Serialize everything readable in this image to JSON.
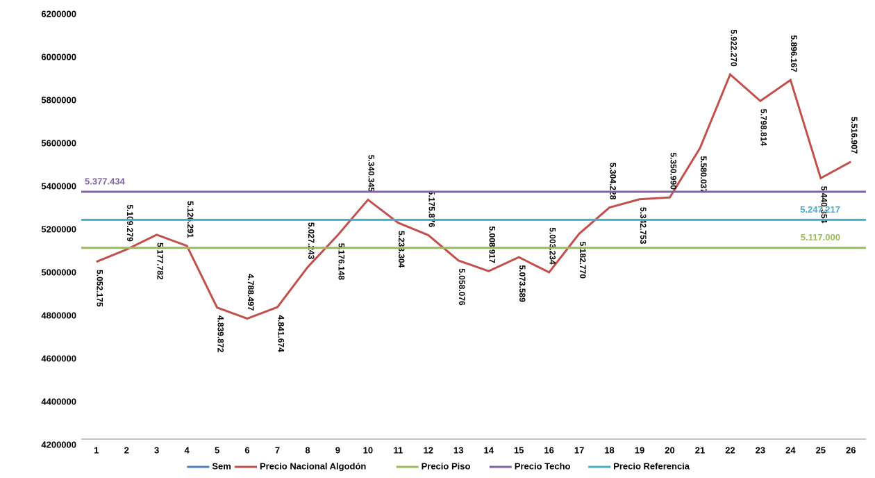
{
  "chart_data": {
    "type": "line",
    "categories": [
      "1",
      "2",
      "3",
      "4",
      "5",
      "6",
      "7",
      "8",
      "9",
      "10",
      "11",
      "12",
      "13",
      "14",
      "15",
      "16",
      "17",
      "18",
      "19",
      "20",
      "21",
      "22",
      "23",
      "24",
      "25",
      "26"
    ],
    "ylim": [
      4200000,
      6200000
    ],
    "yticks": [
      4200000,
      4400000,
      4600000,
      4800000,
      5000000,
      5200000,
      5400000,
      5600000,
      5800000,
      6000000,
      6200000
    ],
    "series": [
      {
        "name": "Sem",
        "color": "#4f81bd",
        "values": [
          null,
          null,
          null,
          null,
          null,
          null,
          null,
          null,
          null,
          null,
          null,
          null,
          null,
          null,
          null,
          null,
          null,
          null,
          null,
          null,
          null,
          null,
          null,
          null,
          null,
          null
        ]
      },
      {
        "name": "Precio Nacional Algodón",
        "color": "#c0504d",
        "values": [
          5052175,
          5109279,
          5177782,
          5126291,
          4839872,
          4788497,
          4841674,
          5027243,
          5176148,
          5340345,
          5233304,
          5175876,
          5058076,
          5008917,
          5073589,
          5003234,
          5182770,
          5304228,
          5342753,
          5350990,
          5580037,
          5922270,
          5798814,
          5896167,
          5440354,
          5516907
        ],
        "value_labels": [
          "5.052.175",
          "5.109.279",
          "5.177.782",
          "5.126.291",
          "4.839.872",
          "4.788.497",
          "4.841.674",
          "5.027.243",
          "5.176.148",
          "5.340.345",
          "5.233.304",
          "5.175.876",
          "5.058.076",
          "5.008.917",
          "5.073.589",
          "5.003.234",
          "5.182.770",
          "5.304.228",
          "5.342.753",
          "5.350.990",
          "5.580.037",
          "5.922.270",
          "5.798.814",
          "5.896.167",
          "5.440.354",
          "5.516.907"
        ]
      },
      {
        "name": "Precio Piso",
        "color": "#9bbb59",
        "value": 5117000,
        "value_label": "5.117.000"
      },
      {
        "name": "Precio Techo",
        "color": "#8064a2",
        "value": 5377434,
        "value_label": "5.377.434"
      },
      {
        "name": "Precio Referencia",
        "color": "#4bacc6",
        "value": 5247217,
        "value_label": "5.247.217"
      }
    ]
  }
}
